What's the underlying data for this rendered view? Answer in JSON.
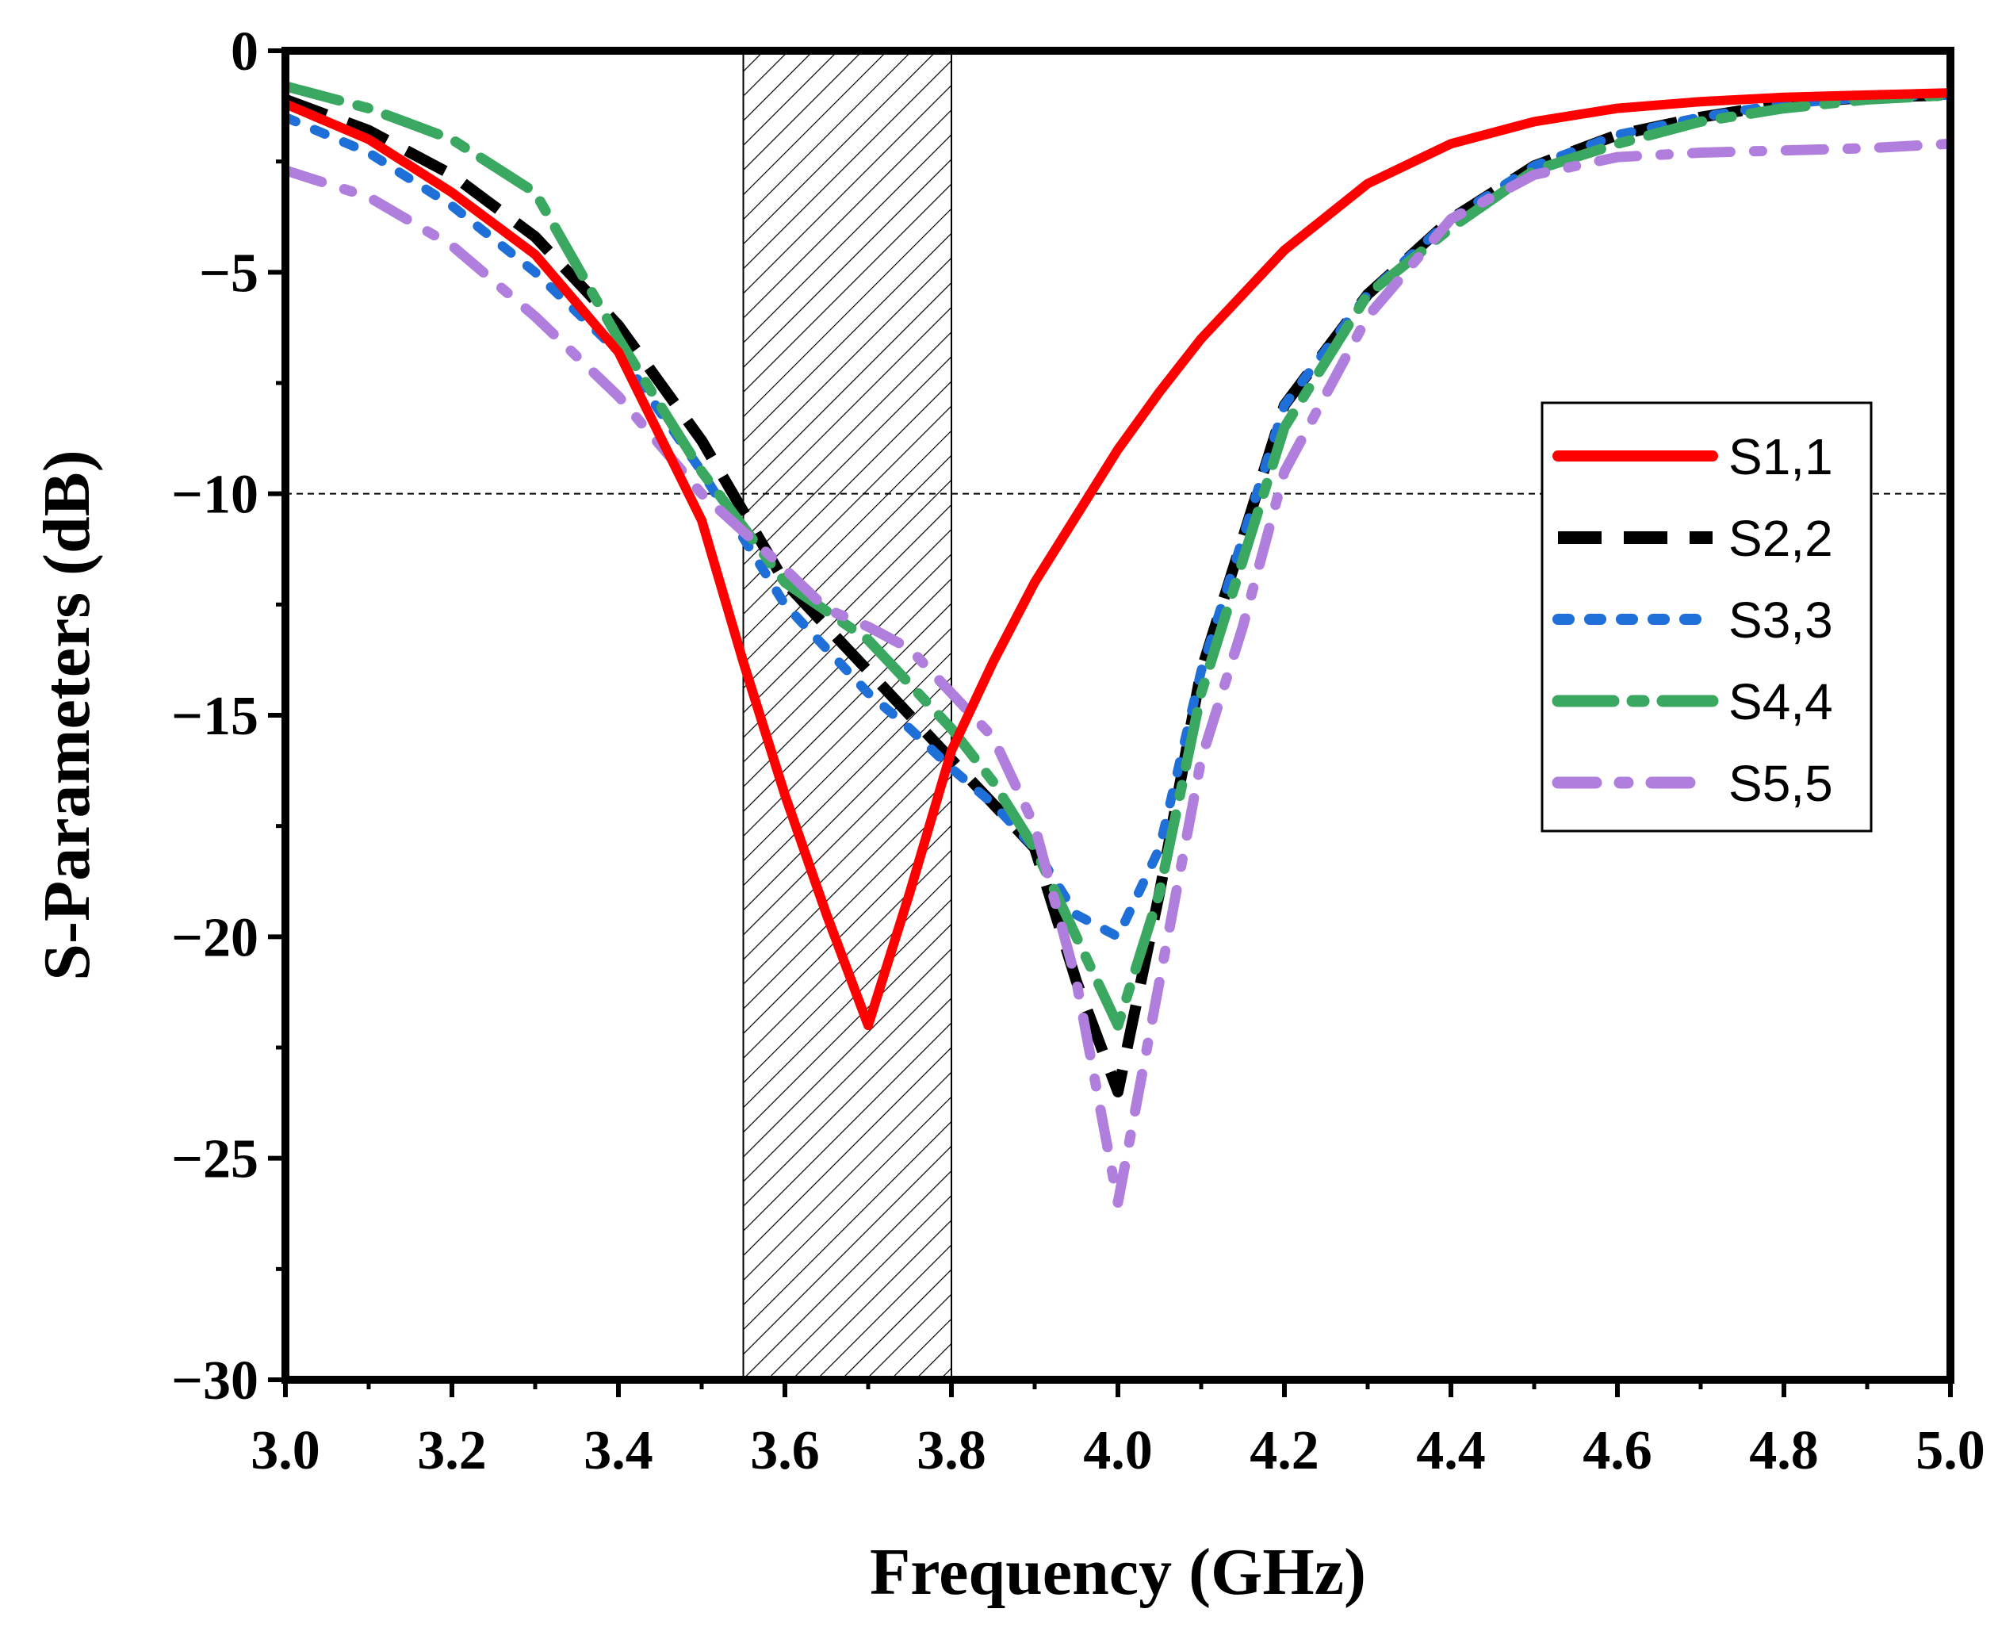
{
  "chart_data": {
    "type": "line",
    "title": "",
    "xlabel": "Frequency (GHz)",
    "ylabel": "S-Parameters (dB)",
    "xlim": [
      3.0,
      5.0
    ],
    "ylim": [
      -30,
      0
    ],
    "xticks": [
      3.0,
      3.2,
      3.4,
      3.6,
      3.8,
      4.0,
      4.2,
      4.4,
      4.6,
      4.8,
      5.0
    ],
    "xtick_labels": [
      "3.0",
      "3.2",
      "3.4",
      "3.6",
      "3.8",
      "4.0",
      "4.2",
      "4.4",
      "4.6",
      "4.8",
      "5.0"
    ],
    "yticks": [
      0,
      -5,
      -10,
      -15,
      -20,
      -25,
      -30
    ],
    "ytick_labels": [
      "0",
      "−5",
      "−10",
      "−15",
      "−20",
      "−25",
      "−30"
    ],
    "grid": false,
    "legend_position": "right",
    "reference_line": {
      "y": -10,
      "style": "dashed"
    },
    "shaded_band": {
      "x_start": 3.55,
      "x_end": 3.8,
      "pattern": "hatched"
    },
    "series": [
      {
        "name": "S1,1",
        "color": "#ff0000",
        "style": "solid",
        "x": [
          3.0,
          3.1,
          3.2,
          3.3,
          3.4,
          3.5,
          3.55,
          3.6,
          3.65,
          3.7,
          3.75,
          3.8,
          3.85,
          3.9,
          3.95,
          4.0,
          4.05,
          4.1,
          4.2,
          4.3,
          4.4,
          4.5,
          4.6,
          4.7,
          4.8,
          4.9,
          5.0
        ],
        "y": [
          -1.2,
          -2.0,
          -3.2,
          -4.6,
          -6.8,
          -10.6,
          -13.8,
          -16.8,
          -19.5,
          -22.0,
          -19.0,
          -15.8,
          -13.8,
          -12.0,
          -10.5,
          -9.0,
          -7.7,
          -6.5,
          -4.5,
          -3.0,
          -2.1,
          -1.6,
          -1.3,
          -1.15,
          -1.05,
          -1.0,
          -0.95
        ]
      },
      {
        "name": "S2,2",
        "color": "#000000",
        "style": "dashed",
        "x": [
          3.0,
          3.1,
          3.2,
          3.3,
          3.4,
          3.5,
          3.6,
          3.7,
          3.75,
          3.8,
          3.85,
          3.9,
          3.95,
          4.0,
          4.05,
          4.1,
          4.15,
          4.2,
          4.3,
          4.4,
          4.5,
          4.6,
          4.7,
          4.8,
          4.9,
          5.0
        ],
        "y": [
          -1.1,
          -1.8,
          -2.8,
          -4.2,
          -6.2,
          -8.8,
          -12.0,
          -14.0,
          -15.0,
          -16.0,
          -17.0,
          -18.0,
          -21.0,
          -23.5,
          -19.0,
          -14.0,
          -11.0,
          -8.0,
          -5.5,
          -3.8,
          -2.6,
          -1.9,
          -1.5,
          -1.2,
          -1.05,
          -1.0
        ]
      },
      {
        "name": "S3,3",
        "color": "#1f6fd9",
        "style": "dotted",
        "x": [
          3.0,
          3.1,
          3.2,
          3.3,
          3.4,
          3.5,
          3.6,
          3.7,
          3.75,
          3.8,
          3.85,
          3.9,
          3.95,
          4.0,
          4.05,
          4.1,
          4.15,
          4.2,
          4.3,
          4.4,
          4.5,
          4.6,
          4.7,
          4.8,
          4.9,
          5.0
        ],
        "y": [
          -1.5,
          -2.3,
          -3.5,
          -5.0,
          -6.8,
          -9.5,
          -12.5,
          -14.5,
          -15.3,
          -16.2,
          -17.0,
          -18.0,
          -19.5,
          -20.0,
          -18.0,
          -14.0,
          -11.0,
          -8.0,
          -5.5,
          -3.8,
          -2.6,
          -1.9,
          -1.5,
          -1.2,
          -1.05,
          -1.0
        ]
      },
      {
        "name": "S4,4",
        "color": "#3aa860",
        "style": "long-dash-dot",
        "x": [
          3.0,
          3.1,
          3.2,
          3.3,
          3.4,
          3.5,
          3.6,
          3.7,
          3.75,
          3.8,
          3.85,
          3.9,
          3.95,
          4.0,
          4.05,
          4.1,
          4.15,
          4.2,
          4.3,
          4.4,
          4.5,
          4.6,
          4.7,
          4.8,
          4.9,
          5.0
        ],
        "y": [
          -0.8,
          -1.3,
          -2.0,
          -3.2,
          -6.5,
          -9.5,
          -12.0,
          -13.3,
          -14.3,
          -15.3,
          -16.5,
          -18.0,
          -20.0,
          -22.0,
          -19.0,
          -14.5,
          -11.5,
          -8.5,
          -5.5,
          -4.0,
          -2.7,
          -2.1,
          -1.6,
          -1.3,
          -1.1,
          -1.0
        ]
      },
      {
        "name": "S5,5",
        "color": "#b07fde",
        "style": "dash-dot",
        "x": [
          3.0,
          3.1,
          3.2,
          3.3,
          3.4,
          3.5,
          3.6,
          3.65,
          3.7,
          3.75,
          3.8,
          3.85,
          3.9,
          3.95,
          4.0,
          4.05,
          4.1,
          4.15,
          4.2,
          4.3,
          4.4,
          4.5,
          4.6,
          4.7,
          4.8,
          4.9,
          5.0
        ],
        "y": [
          -2.7,
          -3.3,
          -4.4,
          -6.0,
          -7.8,
          -10.0,
          -11.7,
          -12.6,
          -13.0,
          -13.5,
          -14.5,
          -15.5,
          -17.5,
          -21.0,
          -26.0,
          -21.0,
          -16.0,
          -13.0,
          -9.5,
          -6.0,
          -3.8,
          -2.8,
          -2.4,
          -2.3,
          -2.25,
          -2.2,
          -2.1
        ]
      }
    ]
  }
}
